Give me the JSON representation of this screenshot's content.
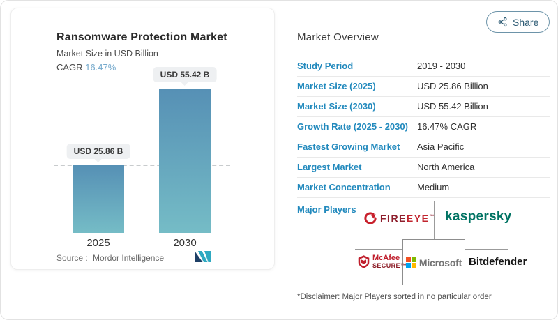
{
  "share": {
    "label": "Share"
  },
  "chart_card": {
    "title": "Ransomware Protection Market",
    "subtitle": "Market Size in USD Billion",
    "cagr_label": "CAGR",
    "cagr_value": "16.47%",
    "source_label": "Source :",
    "source_value": "Mordor Intelligence"
  },
  "chart_data": {
    "type": "bar",
    "title": "Ransomware Protection Market",
    "ylabel": "Market Size in USD Billion",
    "categories": [
      "2025",
      "2030"
    ],
    "values": [
      25.86,
      55.42
    ],
    "value_labels": [
      "USD 25.86 B",
      "USD 55.42 B"
    ],
    "ylim": [
      0,
      60
    ],
    "grid": false,
    "dashed_reference_line": 25.86,
    "cagr_percent": 16.47
  },
  "overview": {
    "title": "Market Overview",
    "rows": [
      {
        "label": "Study Period",
        "value": "2019 - 2030"
      },
      {
        "label": "Market Size (2025)",
        "value": "USD 25.86 Billion"
      },
      {
        "label": "Market Size (2030)",
        "value": "USD 55.42 Billion"
      },
      {
        "label": "Growth Rate (2025 - 2030)",
        "value": "16.47% CAGR"
      },
      {
        "label": "Fastest Growing Market",
        "value": "Asia Pacific"
      },
      {
        "label": "Largest Market",
        "value": "North America"
      },
      {
        "label": "Market Concentration",
        "value": "Medium"
      }
    ],
    "major_players_label": "Major Players",
    "disclaimer": "*Disclaimer: Major Players sorted in no particular order"
  },
  "players": {
    "fireeye": {
      "part1": "FIRE",
      "part2": "EYE",
      "tm": "™"
    },
    "kaspersky": {
      "text": "kaspersky"
    },
    "mcafee": {
      "name": "McAfee",
      "secure": "SECURE™"
    },
    "microsoft": {
      "text": "Microsoft"
    },
    "bitdefender": {
      "text": "Bitdefender"
    }
  },
  "icons": {
    "share": "share-nodes-icon",
    "mordor_intelligence": "mordor-intelligence-logo",
    "fireeye": "fireeye-swoosh-icon",
    "mcafee": "mcafee-shield-icon",
    "microsoft": "microsoft-squares-icon"
  },
  "colors": {
    "accent_label_blue": "#2189bd",
    "cagr_value_blue": "#74a9cc",
    "bar_gradient_top": "#5690b5",
    "bar_gradient_bottom": "#75bcc6",
    "dashed_line_gray": "#c8cbcd",
    "kaspersky_green": "#007363",
    "fireeye_dark_red": "#8e1f2d",
    "fireeye_red": "#c1242e",
    "mcafee_red": "#c01f2d",
    "microsoft_gray": "#737373",
    "microsoft_squares": [
      "#f25022",
      "#7fba00",
      "#00a4ef",
      "#ffb900"
    ],
    "bitdefender_black": "#171717",
    "mi_logo_navy": "#1e3f66",
    "mi_logo_teal": "#2fa9c1",
    "share_button_blue": "#2d5b74"
  }
}
